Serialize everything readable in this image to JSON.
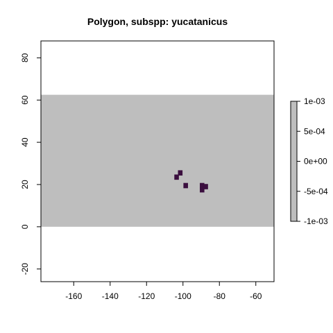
{
  "chart_data": {
    "type": "heatmap",
    "title": "Polygon, subspp: yucatanicus",
    "xlabel": "",
    "ylabel": "",
    "xlim": [
      -178,
      -50
    ],
    "ylim": [
      -26,
      88
    ],
    "x_ticks": [
      -160,
      -140,
      -120,
      -100,
      -80,
      -60
    ],
    "y_ticks": [
      -20,
      0,
      20,
      40,
      60,
      80
    ],
    "grid": false,
    "background_raster": {
      "x_range": [
        -178,
        -50
      ],
      "y_range": [
        0,
        62.5
      ],
      "value": 0,
      "color": "#bebebe"
    },
    "cells": [
      {
        "x": -103.5,
        "y": 23.5,
        "color": "#3b0f3f"
      },
      {
        "x": -101.5,
        "y": 25.5,
        "color": "#3b0f3f"
      },
      {
        "x": -98.5,
        "y": 19.5,
        "color": "#3b0f3f"
      },
      {
        "x": -89.5,
        "y": 19.5,
        "color": "#3b0f3f"
      },
      {
        "x": -89.5,
        "y": 17.5,
        "color": "#3b0f3f"
      },
      {
        "x": -87.5,
        "y": 19.0,
        "color": "#3b0f3f"
      }
    ],
    "cell_size": 2.5,
    "legend": {
      "placement": "right",
      "ticks": [
        "1e-03",
        "5e-04",
        "0e+00",
        "-5e-04",
        "-1e-03"
      ],
      "color": "#bebebe"
    }
  }
}
